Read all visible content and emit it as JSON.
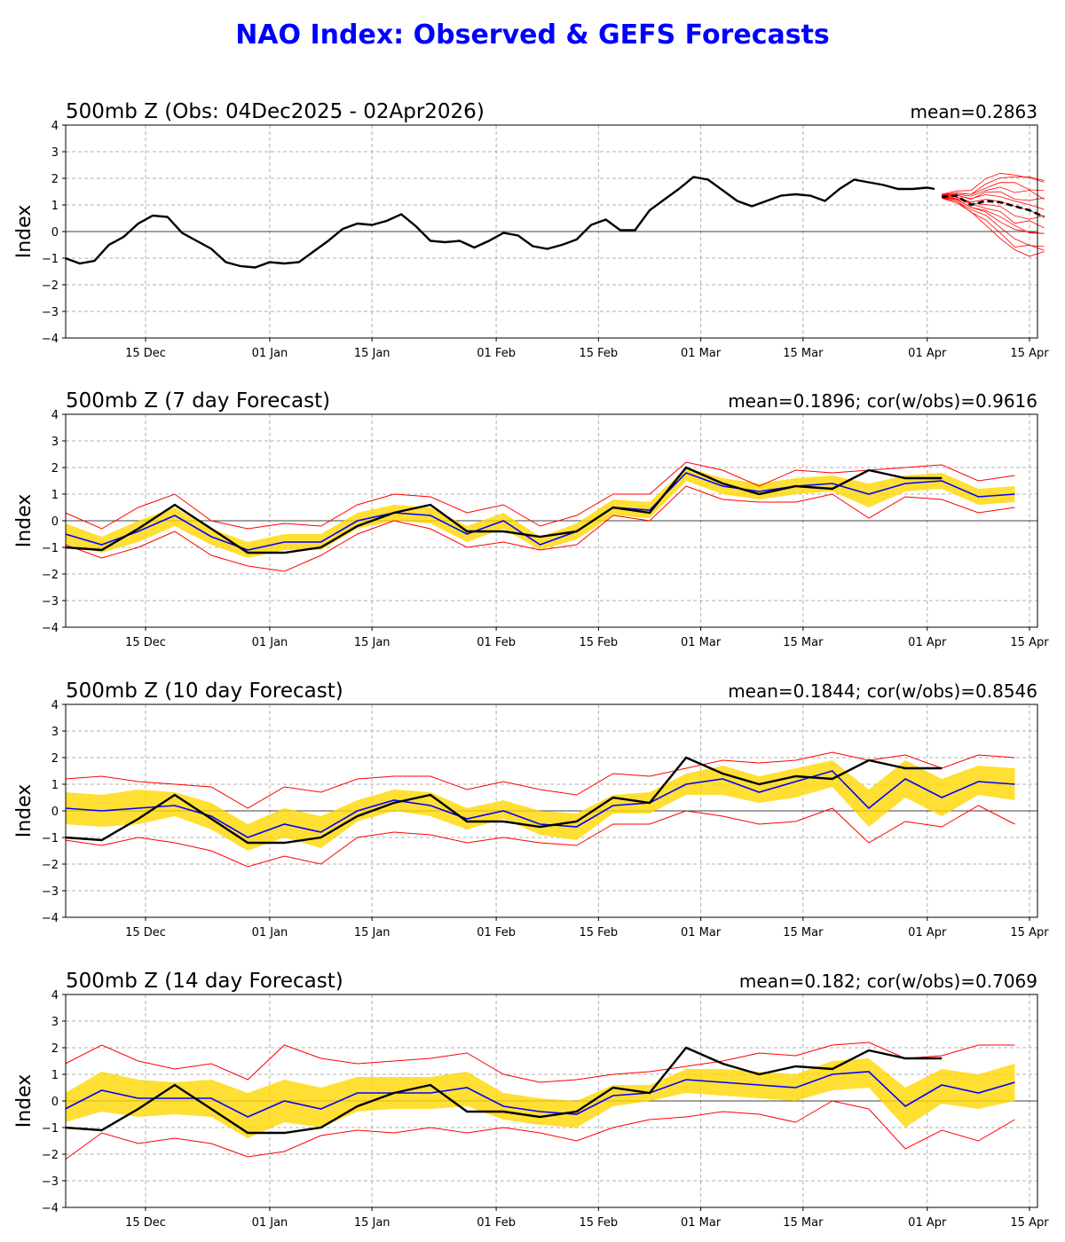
{
  "page_title": "NAO Index: Observed & GEFS Forecasts",
  "colors": {
    "title": "#0000ff",
    "observed": "#000000",
    "ensemble_mean": "#0000ff",
    "spread_band": "#ffd700",
    "members": "#ff0000",
    "grid": "#b0b0b0"
  },
  "chart_data": [
    {
      "type": "line",
      "title": "500mb Z (Obs: 04Dec2025 - 02Apr2026)",
      "stat": "mean=0.2863",
      "ylabel": "Index",
      "ylim": [
        -4,
        4
      ],
      "yticks": [
        "4",
        "3",
        "2",
        "1",
        "0",
        "−1",
        "−2",
        "−3",
        "−4"
      ],
      "xticks": [
        "15 Dec",
        "01 Jan",
        "15 Jan",
        "01 Feb",
        "15 Feb",
        "01 Mar",
        "15 Mar",
        "01 Apr",
        "15 Apr"
      ],
      "grid": true,
      "observed": {
        "x": [
          "04Dec",
          "06Dec",
          "08Dec",
          "10Dec",
          "12Dec",
          "14Dec",
          "16Dec",
          "18Dec",
          "20Dec",
          "22Dec",
          "24Dec",
          "26Dec",
          "28Dec",
          "30Dec",
          "01Jan",
          "03Jan",
          "05Jan",
          "07Jan",
          "09Jan",
          "11Jan",
          "13Jan",
          "15Jan",
          "17Jan",
          "19Jan",
          "21Jan",
          "23Jan",
          "25Jan",
          "27Jan",
          "29Jan",
          "31Jan",
          "02Feb",
          "04Feb",
          "06Feb",
          "08Feb",
          "10Feb",
          "12Feb",
          "14Feb",
          "16Feb",
          "18Feb",
          "20Feb",
          "22Feb",
          "24Feb",
          "26Feb",
          "28Feb",
          "02Mar",
          "04Mar",
          "06Mar",
          "08Mar",
          "10Mar",
          "12Mar",
          "14Mar",
          "16Mar",
          "18Mar",
          "20Mar",
          "22Mar",
          "24Mar",
          "26Mar",
          "28Mar",
          "30Mar",
          "01Apr",
          "02Apr"
        ],
        "y": [
          -1.0,
          -1.2,
          -1.1,
          -0.5,
          -0.2,
          0.3,
          0.6,
          0.55,
          -0.05,
          -0.35,
          -0.65,
          -1.15,
          -1.3,
          -1.35,
          -1.15,
          -1.2,
          -1.15,
          -0.75,
          -0.35,
          0.1,
          0.3,
          0.25,
          0.4,
          0.65,
          0.2,
          -0.35,
          -0.4,
          -0.35,
          -0.6,
          -0.35,
          -0.05,
          -0.15,
          -0.55,
          -0.65,
          -0.5,
          -0.3,
          0.25,
          0.45,
          0.05,
          0.05,
          0.8,
          1.2,
          1.6,
          2.05,
          1.95,
          1.55,
          1.15,
          0.95,
          1.15,
          1.35,
          1.4,
          1.35,
          1.15,
          1.6,
          1.95,
          1.85,
          1.75,
          1.6,
          1.6,
          1.65,
          1.6
        ]
      },
      "forecast_mean": {
        "x": [
          "03Apr",
          "05Apr",
          "07Apr",
          "09Apr",
          "11Apr",
          "13Apr",
          "15Apr",
          "17Apr"
        ],
        "y": [
          1.3,
          1.35,
          1.0,
          1.15,
          1.1,
          0.95,
          0.8,
          0.55
        ]
      },
      "forecast_members_min": {
        "x": [
          "03Apr",
          "05Apr",
          "07Apr",
          "09Apr",
          "11Apr",
          "13Apr",
          "15Apr",
          "17Apr"
        ],
        "y": [
          1.25,
          1.1,
          0.7,
          0.3,
          -0.3,
          -0.7,
          -0.85,
          -0.9
        ]
      },
      "forecast_members_max": {
        "x": [
          "03Apr",
          "05Apr",
          "07Apr",
          "09Apr",
          "11Apr",
          "13Apr",
          "15Apr",
          "17Apr"
        ],
        "y": [
          1.4,
          1.5,
          1.5,
          1.95,
          2.2,
          2.2,
          2.15,
          2.0
        ]
      }
    },
    {
      "type": "line",
      "title": "500mb Z (7 day Forecast)",
      "stat": "mean=0.1896; cor(w/obs)=0.9616",
      "ylabel": "Index",
      "ylim": [
        -4,
        4
      ],
      "yticks": [
        "4",
        "3",
        "2",
        "1",
        "0",
        "−1",
        "−2",
        "−3",
        "−4"
      ],
      "xticks": [
        "15 Dec",
        "01 Jan",
        "15 Jan",
        "01 Feb",
        "15 Feb",
        "01 Mar",
        "15 Mar",
        "01 Apr",
        "15 Apr"
      ],
      "grid": true,
      "x": [
        "04Dec",
        "09Dec",
        "14Dec",
        "19Dec",
        "24Dec",
        "29Dec",
        "03Jan",
        "08Jan",
        "13Jan",
        "18Jan",
        "23Jan",
        "28Jan",
        "02Feb",
        "07Feb",
        "12Feb",
        "17Feb",
        "22Feb",
        "27Feb",
        "04Mar",
        "09Mar",
        "14Mar",
        "19Mar",
        "24Mar",
        "29Mar",
        "03Apr",
        "08Apr",
        "13Apr"
      ],
      "ensemble_mean": [
        -0.5,
        -0.9,
        -0.4,
        0.2,
        -0.6,
        -1.1,
        -0.8,
        -0.8,
        0.0,
        0.3,
        0.2,
        -0.5,
        0.0,
        -0.9,
        -0.4,
        0.5,
        0.4,
        1.8,
        1.3,
        1.1,
        1.3,
        1.4,
        1.0,
        1.4,
        1.5,
        0.9,
        1.0
      ],
      "spread_low": [
        -0.9,
        -1.2,
        -0.8,
        -0.2,
        -0.9,
        -1.4,
        -1.1,
        -1.1,
        -0.3,
        0.0,
        -0.1,
        -0.8,
        -0.3,
        -1.1,
        -0.7,
        0.2,
        0.1,
        1.5,
        1.0,
        0.8,
        1.0,
        1.1,
        0.5,
        1.1,
        1.2,
        0.6,
        0.7
      ],
      "spread_high": [
        -0.1,
        -0.6,
        0.0,
        0.5,
        -0.3,
        -0.8,
        -0.5,
        -0.5,
        0.3,
        0.6,
        0.5,
        -0.2,
        0.3,
        -0.6,
        -0.1,
        0.8,
        0.7,
        2.0,
        1.6,
        1.4,
        1.6,
        1.7,
        1.4,
        1.7,
        1.8,
        1.2,
        1.3
      ],
      "members_min": [
        -0.9,
        -1.4,
        -1.0,
        -0.4,
        -1.3,
        -1.7,
        -1.9,
        -1.3,
        -0.5,
        0.0,
        -0.3,
        -1.0,
        -0.8,
        -1.1,
        -0.9,
        0.2,
        0.0,
        1.3,
        0.8,
        0.7,
        0.7,
        1.0,
        0.1,
        0.9,
        0.8,
        0.3,
        0.5
      ],
      "members_max": [
        0.3,
        -0.3,
        0.5,
        1.0,
        0.0,
        -0.3,
        -0.1,
        -0.2,
        0.6,
        1.0,
        0.9,
        0.3,
        0.6,
        -0.2,
        0.2,
        1.0,
        1.0,
        2.2,
        1.9,
        1.3,
        1.9,
        1.8,
        1.9,
        2.0,
        2.1,
        1.5,
        1.7
      ],
      "observed": [
        -1.0,
        -1.1,
        -0.3,
        0.6,
        -0.3,
        -1.2,
        -1.2,
        -1.0,
        -0.2,
        0.3,
        0.6,
        -0.4,
        -0.4,
        -0.6,
        -0.4,
        0.5,
        0.3,
        2.0,
        1.4,
        1.0,
        1.3,
        1.2,
        1.9,
        1.6,
        1.6,
        null,
        null
      ]
    },
    {
      "type": "line",
      "title": "500mb Z (10 day Forecast)",
      "stat": "mean=0.1844; cor(w/obs)=0.8546",
      "ylabel": "Index",
      "ylim": [
        -4,
        4
      ],
      "yticks": [
        "4",
        "3",
        "2",
        "1",
        "0",
        "−1",
        "−2",
        "−3",
        "−4"
      ],
      "xticks": [
        "15 Dec",
        "01 Jan",
        "15 Jan",
        "01 Feb",
        "15 Feb",
        "01 Mar",
        "15 Mar",
        "01 Apr",
        "15 Apr"
      ],
      "grid": true,
      "x": [
        "04Dec",
        "09Dec",
        "14Dec",
        "19Dec",
        "24Dec",
        "29Dec",
        "03Jan",
        "08Jan",
        "13Jan",
        "18Jan",
        "23Jan",
        "28Jan",
        "02Feb",
        "07Feb",
        "12Feb",
        "17Feb",
        "22Feb",
        "27Feb",
        "04Mar",
        "09Mar",
        "14Mar",
        "19Mar",
        "24Mar",
        "29Mar",
        "03Apr",
        "08Apr",
        "13Apr"
      ],
      "ensemble_mean": [
        0.1,
        0.0,
        0.1,
        0.2,
        -0.2,
        -1.0,
        -0.5,
        -0.8,
        0.0,
        0.4,
        0.2,
        -0.3,
        0.0,
        -0.5,
        -0.6,
        0.2,
        0.3,
        1.0,
        1.2,
        0.7,
        1.1,
        1.5,
        0.1,
        1.2,
        0.5,
        1.1,
        1.0
      ],
      "spread_low": [
        -0.5,
        -0.6,
        -0.5,
        -0.2,
        -0.7,
        -1.5,
        -1.0,
        -1.4,
        -0.4,
        0.0,
        -0.2,
        -0.7,
        -0.3,
        -0.9,
        -1.1,
        -0.1,
        -0.1,
        0.6,
        0.6,
        0.3,
        0.5,
        0.9,
        -0.6,
        0.5,
        -0.2,
        0.6,
        0.4
      ],
      "spread_high": [
        0.7,
        0.6,
        0.8,
        0.7,
        0.3,
        -0.5,
        0.1,
        -0.2,
        0.4,
        0.8,
        0.7,
        0.1,
        0.4,
        0.0,
        -0.1,
        0.6,
        0.7,
        1.4,
        1.7,
        1.3,
        1.6,
        1.9,
        0.8,
        1.9,
        1.2,
        1.7,
        1.6
      ],
      "members_min": [
        -1.1,
        -1.3,
        -1.0,
        -1.2,
        -1.5,
        -2.1,
        -1.7,
        -2.0,
        -1.0,
        -0.8,
        -0.9,
        -1.2,
        -1.0,
        -1.2,
        -1.3,
        -0.5,
        -0.5,
        0.0,
        -0.2,
        -0.5,
        -0.4,
        0.1,
        -1.2,
        -0.4,
        -0.6,
        0.2,
        -0.5
      ],
      "members_max": [
        1.2,
        1.3,
        1.1,
        1.0,
        0.9,
        0.1,
        0.9,
        0.7,
        1.2,
        1.3,
        1.3,
        0.8,
        1.1,
        0.8,
        0.6,
        1.4,
        1.3,
        1.6,
        1.9,
        1.8,
        1.9,
        2.2,
        1.9,
        2.1,
        1.6,
        2.1,
        2.0
      ],
      "observed": [
        -1.0,
        -1.1,
        -0.3,
        0.6,
        -0.3,
        -1.2,
        -1.2,
        -1.0,
        -0.2,
        0.3,
        0.6,
        -0.4,
        -0.4,
        -0.6,
        -0.4,
        0.5,
        0.3,
        2.0,
        1.4,
        1.0,
        1.3,
        1.2,
        1.9,
        1.6,
        1.6,
        null,
        null
      ]
    },
    {
      "type": "line",
      "title": "500mb Z (14 day Forecast)",
      "stat": "mean=0.182; cor(w/obs)=0.7069",
      "ylabel": "Index",
      "ylim": [
        -4,
        4
      ],
      "yticks": [
        "4",
        "3",
        "2",
        "1",
        "0",
        "−1",
        "−2",
        "−3",
        "−4"
      ],
      "xticks": [
        "15 Dec",
        "01 Jan",
        "15 Jan",
        "01 Feb",
        "15 Feb",
        "01 Mar",
        "15 Mar",
        "01 Apr",
        "15 Apr"
      ],
      "grid": true,
      "x": [
        "04Dec",
        "09Dec",
        "14Dec",
        "19Dec",
        "24Dec",
        "29Dec",
        "03Jan",
        "08Jan",
        "13Jan",
        "18Jan",
        "23Jan",
        "28Jan",
        "02Feb",
        "07Feb",
        "12Feb",
        "17Feb",
        "22Feb",
        "27Feb",
        "04Mar",
        "09Mar",
        "14Mar",
        "19Mar",
        "24Mar",
        "29Mar",
        "03Apr",
        "08Apr",
        "13Apr"
      ],
      "ensemble_mean": [
        -0.3,
        0.4,
        0.1,
        0.1,
        0.1,
        -0.6,
        0.0,
        -0.3,
        0.3,
        0.3,
        0.3,
        0.5,
        -0.2,
        -0.4,
        -0.5,
        0.2,
        0.3,
        0.8,
        0.7,
        0.6,
        0.5,
        1.0,
        1.1,
        -0.2,
        0.6,
        0.3,
        0.7
      ],
      "spread_low": [
        -0.8,
        -0.4,
        -0.6,
        -0.5,
        -0.6,
        -1.4,
        -0.8,
        -1.0,
        -0.4,
        -0.3,
        -0.3,
        -0.2,
        -0.7,
        -0.9,
        -1.0,
        -0.2,
        0.0,
        0.3,
        0.2,
        0.1,
        0.0,
        0.4,
        0.5,
        -1.0,
        -0.1,
        -0.3,
        0.0
      ],
      "spread_high": [
        0.3,
        1.1,
        0.8,
        0.7,
        0.8,
        0.3,
        0.8,
        0.5,
        0.9,
        0.9,
        0.9,
        1.1,
        0.3,
        0.1,
        0.0,
        0.6,
        0.6,
        1.2,
        1.2,
        1.1,
        1.0,
        1.5,
        1.6,
        0.5,
        1.2,
        1.0,
        1.4
      ],
      "members_min": [
        -2.2,
        -1.2,
        -1.6,
        -1.4,
        -1.6,
        -2.1,
        -1.9,
        -1.3,
        -1.1,
        -1.2,
        -1.0,
        -1.2,
        -1.0,
        -1.2,
        -1.5,
        -1.0,
        -0.7,
        -0.6,
        -0.4,
        -0.5,
        -0.8,
        0.0,
        -0.3,
        -1.8,
        -1.1,
        -1.5,
        -0.7
      ],
      "members_max": [
        1.4,
        2.1,
        1.5,
        1.2,
        1.4,
        0.8,
        2.1,
        1.6,
        1.4,
        1.5,
        1.6,
        1.8,
        1.0,
        0.7,
        0.8,
        1.0,
        1.1,
        1.3,
        1.5,
        1.8,
        1.7,
        2.1,
        2.2,
        1.6,
        1.7,
        2.1,
        2.1
      ],
      "observed": [
        -1.0,
        -1.1,
        -0.3,
        0.6,
        -0.3,
        -1.2,
        -1.2,
        -1.0,
        -0.2,
        0.3,
        0.6,
        -0.4,
        -0.4,
        -0.6,
        -0.4,
        0.5,
        0.3,
        2.0,
        1.4,
        1.0,
        1.3,
        1.2,
        1.9,
        1.6,
        1.6,
        null,
        null
      ]
    }
  ]
}
